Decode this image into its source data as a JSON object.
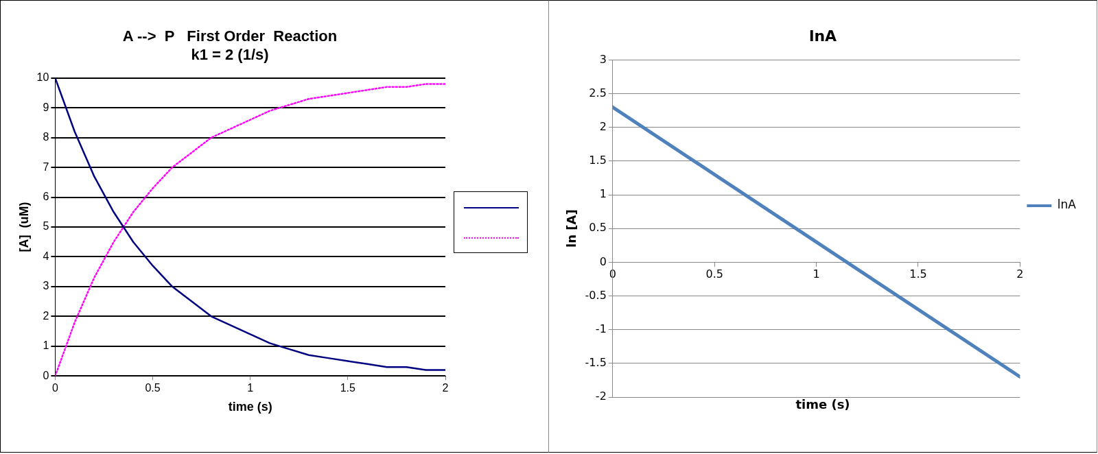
{
  "chart_data": [
    {
      "type": "line",
      "title": "A -->  P   First Order  Reaction",
      "subtitle": "k1 = 2 (1/s)",
      "xlabel": "time (s)",
      "ylabel": "[A]  (uM)",
      "x": [
        0,
        0.1,
        0.2,
        0.3,
        0.4,
        0.5,
        0.6,
        0.7,
        0.8,
        0.9,
        1,
        1.1,
        1.2,
        1.3,
        1.4,
        1.5,
        1.6,
        1.7,
        1.8,
        1.9,
        2
      ],
      "series": [
        {
          "color": "#000080",
          "line_style": "solid",
          "values": [
            10,
            8.2,
            6.7,
            5.5,
            4.5,
            3.7,
            3.0,
            2.5,
            2.0,
            1.7,
            1.4,
            1.1,
            0.9,
            0.7,
            0.6,
            0.5,
            0.4,
            0.3,
            0.3,
            0.2,
            0.2
          ]
        },
        {
          "color": "#ff00ff",
          "line_style": "dotted",
          "values": [
            0,
            1.8,
            3.3,
            4.5,
            5.5,
            6.3,
            7.0,
            7.5,
            8.0,
            8.3,
            8.6,
            8.9,
            9.1,
            9.3,
            9.4,
            9.5,
            9.6,
            9.7,
            9.7,
            9.8,
            9.8
          ]
        }
      ],
      "xlim": [
        0,
        2
      ],
      "xticks": [
        0,
        0.5,
        1,
        1.5,
        2
      ],
      "ylim": [
        0,
        10
      ],
      "yticks": [
        0,
        1,
        2,
        3,
        4,
        5,
        6,
        7,
        8,
        9,
        10
      ],
      "grid": "y",
      "marker": "none"
    },
    {
      "type": "line",
      "title": "lnA",
      "xlabel": "time (s)",
      "ylabel": "ln [A]",
      "x": [
        0,
        1,
        2
      ],
      "series": [
        {
          "name": "lnA",
          "color": "#4f81bd",
          "line_style": "solid",
          "values": [
            2.3,
            0.3,
            -1.7
          ]
        }
      ],
      "xlim": [
        0,
        2
      ],
      "xticks": [
        0,
        0.5,
        1,
        1.5,
        2
      ],
      "ylim": [
        -2,
        3
      ],
      "yticks": [
        -2,
        -1.5,
        -1,
        -0.5,
        0,
        0.5,
        1,
        1.5,
        2,
        2.5,
        3
      ],
      "grid": "y",
      "legend": "right",
      "marker": "none"
    }
  ]
}
